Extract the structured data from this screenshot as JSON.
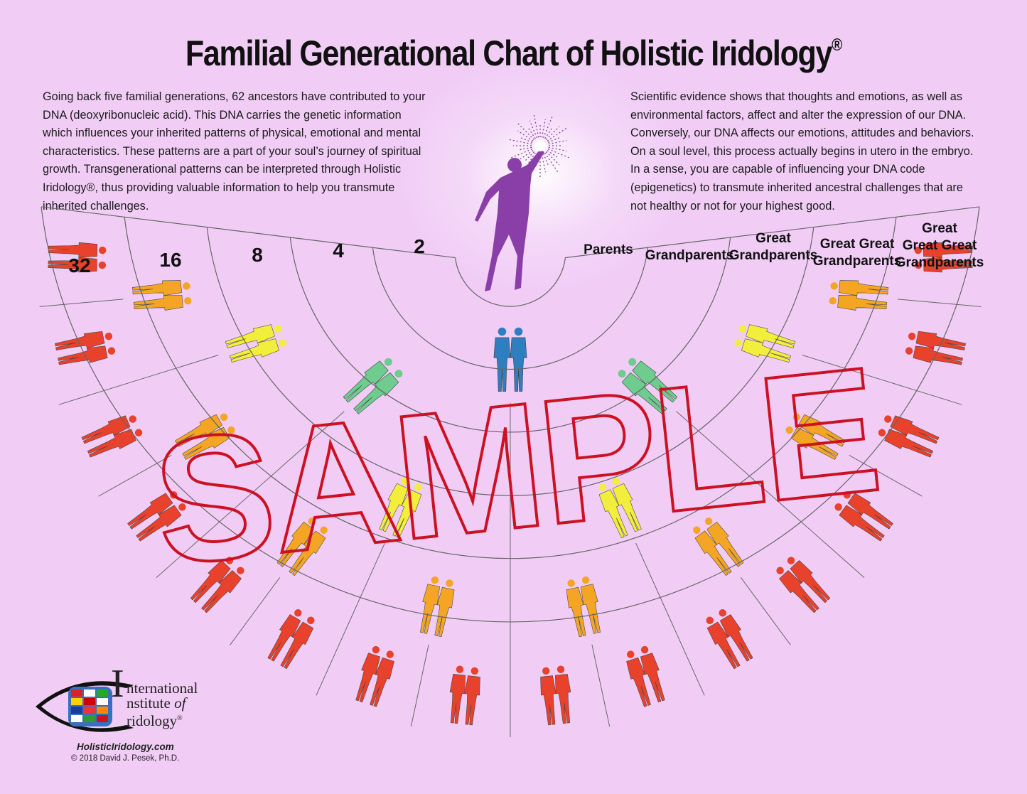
{
  "title": "Familial Generational Chart of Holistic Iridology",
  "title_mark": "®",
  "intro_left": "Going back five familial generations, 62 ancestors have contributed to your DNA (deoxyribonucleic acid). This DNA carries the genetic information which influences your inherited patterns of physical, emotional and mental characteristics. These patterns are a part of your soul’s journey of spiritual growth. Transgenerational patterns can be interpreted through Holistic Iridology®, thus providing valuable information to help you transmute inherited challenges.",
  "intro_right": "Scientific evidence shows that thoughts and emotions, as well as environmental factors, affect and alter the expression of our DNA. Conversely, our DNA affects our emotions, attitudes and behaviors. On a soul level, this process actually begins in utero in the embryo. In a sense, you are capable of influencing your DNA code (epigenetics) to transmute inherited ancestral challenges that are not healthy or not for your highest good.",
  "ring_counts": [
    "32",
    "16",
    "8",
    "4",
    "2"
  ],
  "generation_labels": [
    {
      "lines": [
        "Parents"
      ]
    },
    {
      "lines": [
        "Grandparents"
      ]
    },
    {
      "lines": [
        "Great",
        "Grandparents"
      ]
    },
    {
      "lines": [
        "Great Great",
        "Grandparents"
      ]
    },
    {
      "lines": [
        "Great",
        "Great Great",
        "Grandparents"
      ]
    }
  ],
  "watermark": "SAMPLE",
  "ring_colors": [
    "#2f7fc0",
    "#6dcc8e",
    "#f3ee3c",
    "#f5a524",
    "#e8412c"
  ],
  "watermark_color": "#cc1122",
  "figure_color": "#8a3fa8",
  "logo": {
    "line1": "nternational",
    "line2": "nstitute",
    "line2_of": "of",
    "line3": "ridology",
    "initial": "I",
    "mark": "®"
  },
  "website": "HolisticIridology.com",
  "copyright": "© 2018 David J. Pesek, Ph.D."
}
